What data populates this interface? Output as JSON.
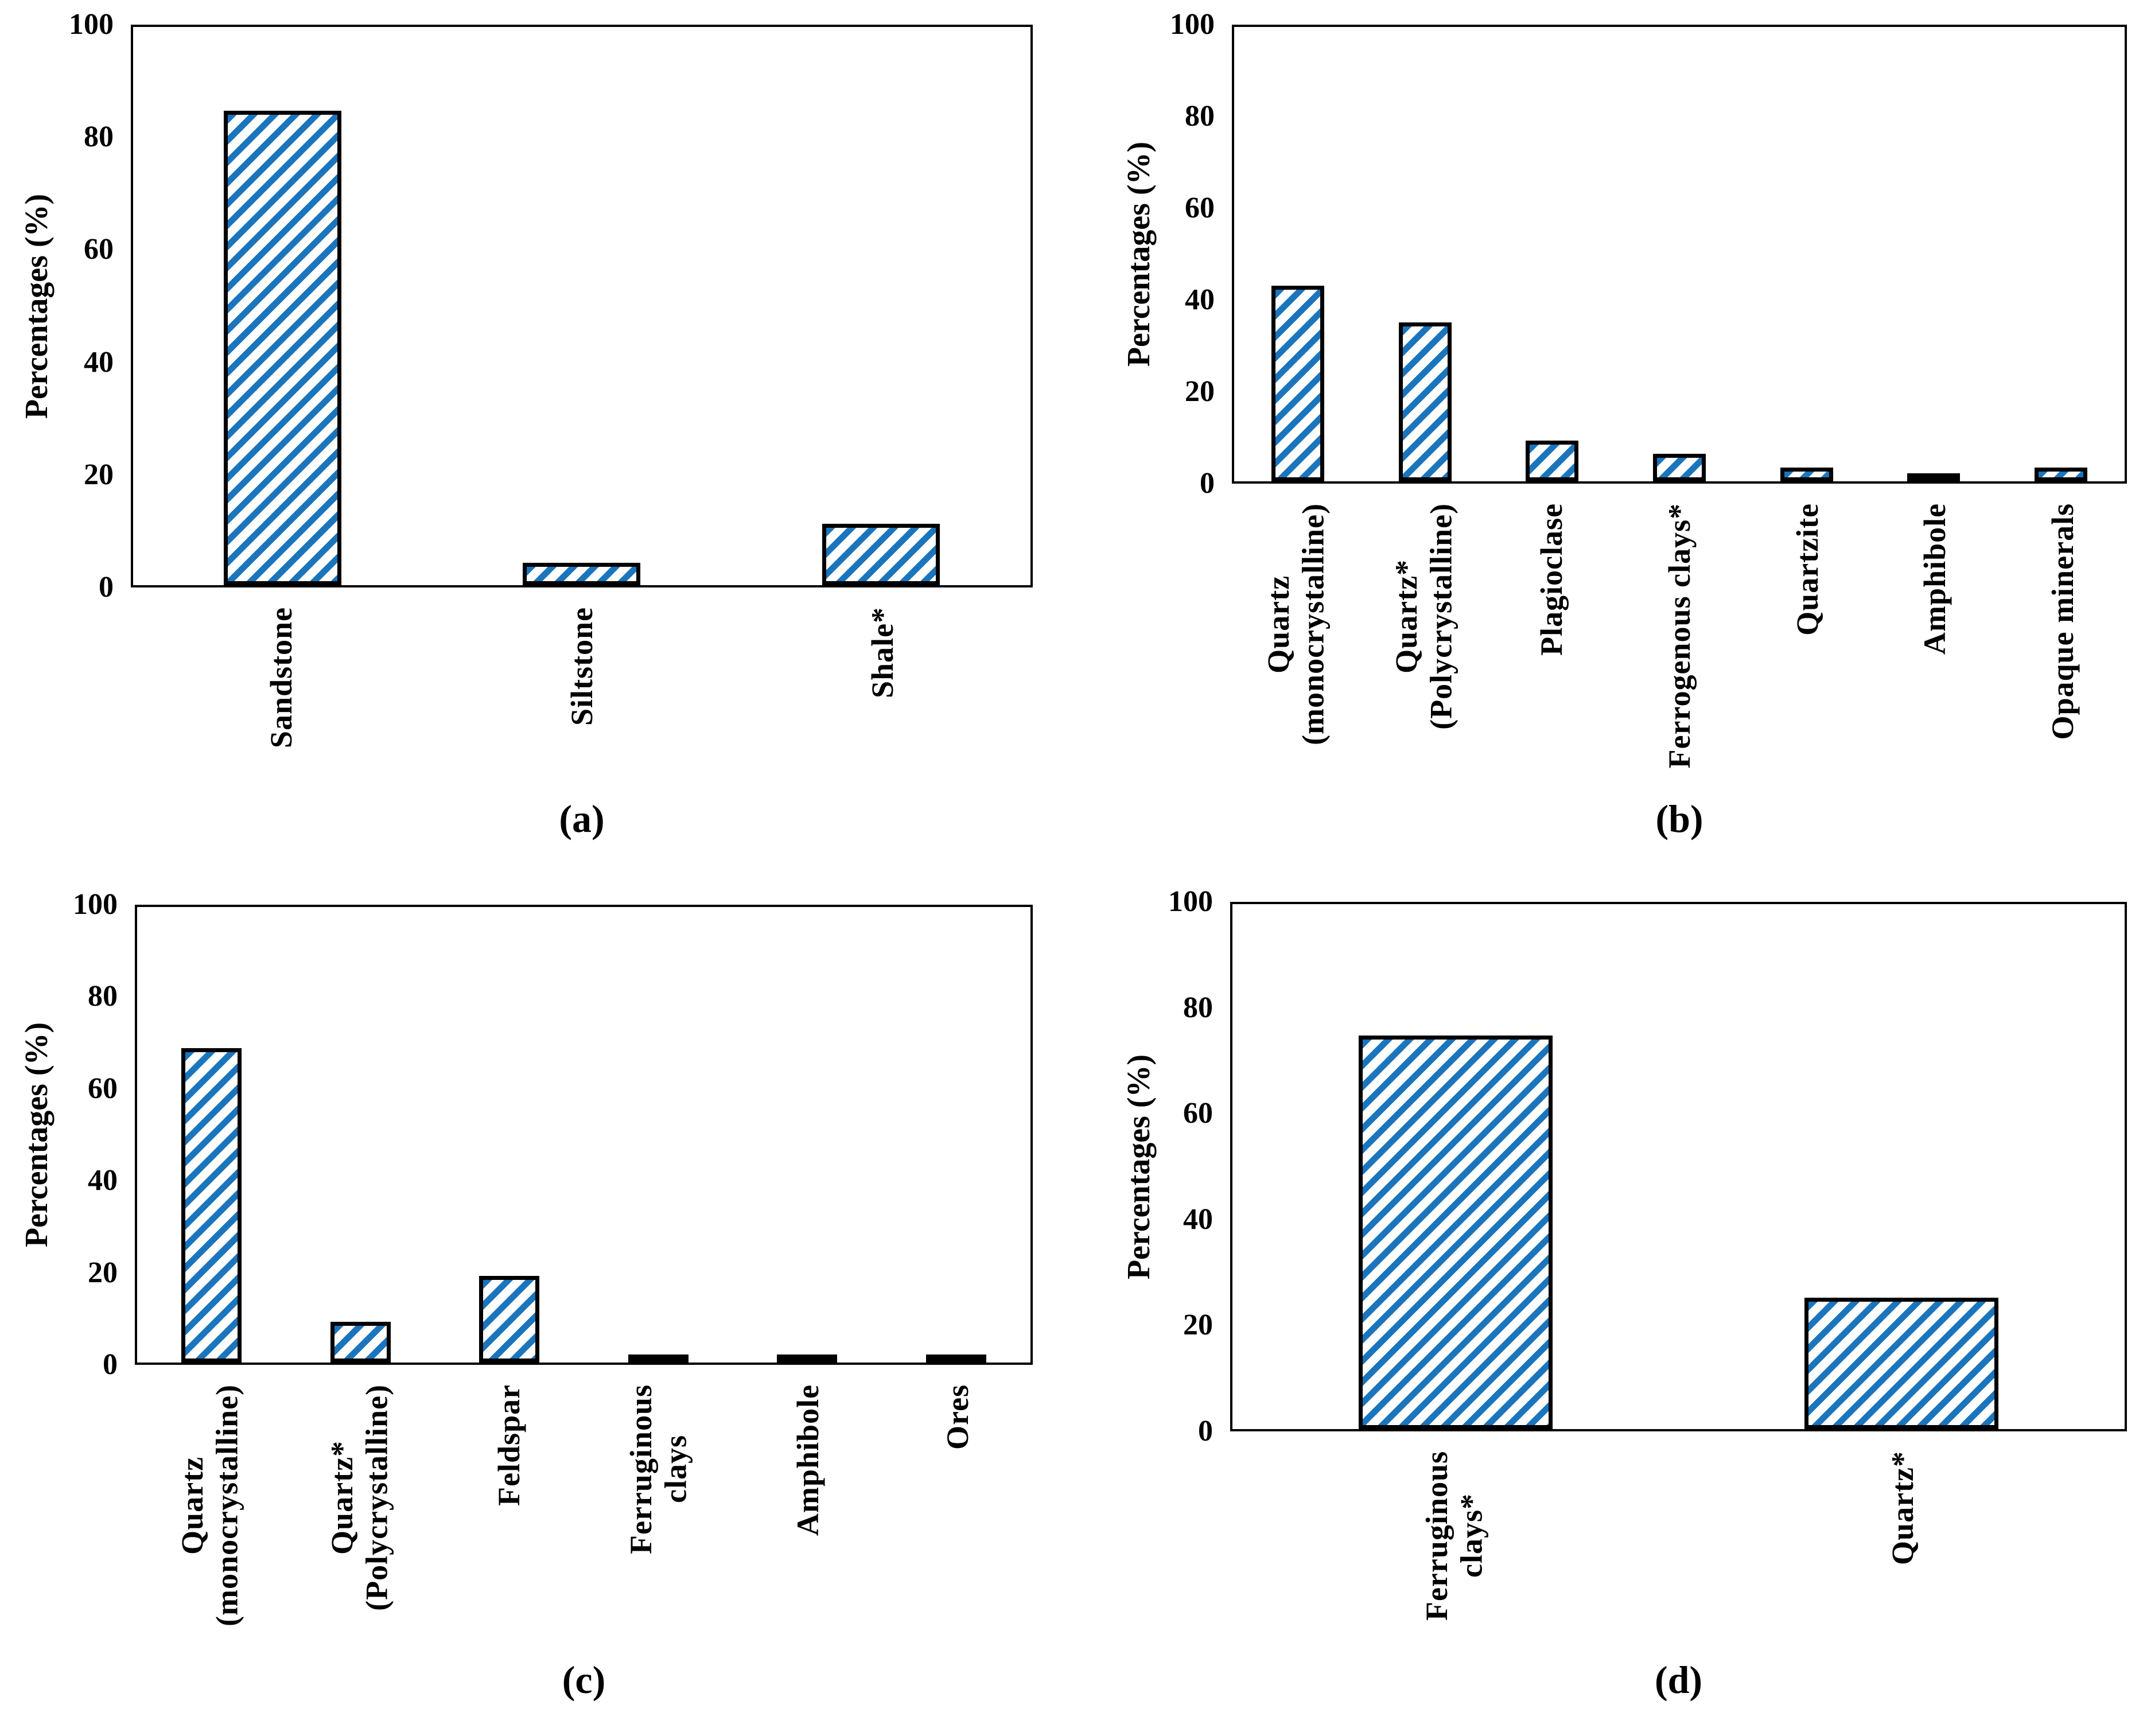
{
  "figure": {
    "background": "#FFFFFF",
    "hatch_color": "#1B75BC",
    "bar_outline_color": "#000000",
    "text_color": "#000000",
    "hatch_style": "diagonal-stripes-bottomleft-to-topright"
  },
  "chart_data": [
    {
      "panel": "a",
      "type": "bar",
      "title": "",
      "xlabel": "",
      "ylabel": "Percentages (%)",
      "ylim": [
        0,
        100
      ],
      "yticks": [
        100,
        80,
        60,
        40,
        20,
        0
      ],
      "categories": [
        "Sandstone",
        "Siltstone",
        "Shale*"
      ],
      "values": [
        85,
        4,
        11
      ],
      "caption": "(a)",
      "grid": false,
      "legend_position": "none"
    },
    {
      "panel": "b",
      "type": "bar",
      "title": "",
      "xlabel": "",
      "ylabel": "Percentages (%)",
      "ylim": [
        0,
        100
      ],
      "yticks": [
        100,
        80,
        60,
        40,
        20,
        0
      ],
      "categories": [
        "Quartz\n(monocrystalline)",
        "Quartz*\n(Polycrystalline)",
        "Plagioclase",
        "Ferrogenous clays*",
        "Quartzite",
        "Amphibole",
        "Opaque minerals"
      ],
      "values": [
        43,
        35,
        9,
        6,
        3,
        1,
        3
      ],
      "caption": "(b)",
      "grid": false,
      "legend_position": "none"
    },
    {
      "panel": "c",
      "type": "bar",
      "title": "",
      "xlabel": "",
      "ylabel": "Percentages (%)",
      "ylim": [
        0,
        100
      ],
      "yticks": [
        100,
        80,
        60,
        40,
        20,
        0
      ],
      "categories": [
        "Quartz\n(monocrystalline)",
        "Quartz*\n(Polycrystalline)",
        "Feldspar",
        "Ferruginous\nclays",
        "Amphibole",
        "Ores"
      ],
      "values": [
        69,
        9,
        19,
        1,
        1,
        1
      ],
      "caption": "(c)",
      "grid": false,
      "legend_position": "none"
    },
    {
      "panel": "d",
      "type": "bar",
      "title": "",
      "xlabel": "",
      "ylabel": "Percentages (%)",
      "ylim": [
        0,
        100
      ],
      "yticks": [
        100,
        80,
        60,
        40,
        20,
        0
      ],
      "categories": [
        "Ferruginous\nclays*",
        "Quartz*"
      ],
      "values": [
        75,
        25
      ],
      "caption": "(d)",
      "grid": false,
      "legend_position": "none"
    }
  ]
}
